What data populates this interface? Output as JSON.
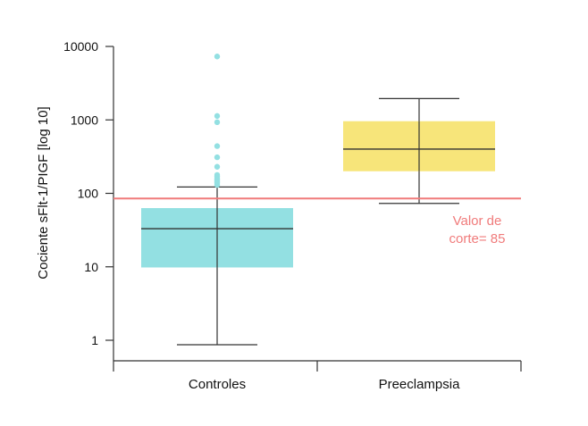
{
  "chart_data": {
    "type": "box",
    "title": "",
    "xlabel": "",
    "ylabel": "Cociente sFlt-1/PIGF [log 10]",
    "yscale": "log10",
    "ylim": [
      0.6,
      10000
    ],
    "yticks": [
      {
        "value": 1,
        "label": "1"
      },
      {
        "value": 10,
        "label": "10"
      },
      {
        "value": 100,
        "label": "100"
      },
      {
        "value": 1000,
        "label": "1000"
      },
      {
        "value": 10000,
        "label": "10000"
      }
    ],
    "categories": [
      "Controles",
      "Preeclampsia"
    ],
    "boxes": [
      {
        "name": "Controles",
        "color": "#93e0e2",
        "min": 0.87,
        "q1": 9.8,
        "median": 33,
        "q3": 63,
        "max": 122,
        "outliers": [
          130,
          138,
          145,
          150,
          158,
          168,
          178,
          230,
          310,
          440,
          930,
          1130,
          7300
        ]
      },
      {
        "name": "Preeclampsia",
        "color": "#f7e57a",
        "min": 73,
        "q1": 200,
        "median": 400,
        "q3": 960,
        "max": 1950,
        "outliers": []
      }
    ],
    "reference_line": {
      "value": 85,
      "label_line1": "Valor de",
      "label_line2": "corte= 85",
      "color": "#f07b7b"
    },
    "outlier_color": "#93e0e2",
    "line_color": "#333333"
  }
}
